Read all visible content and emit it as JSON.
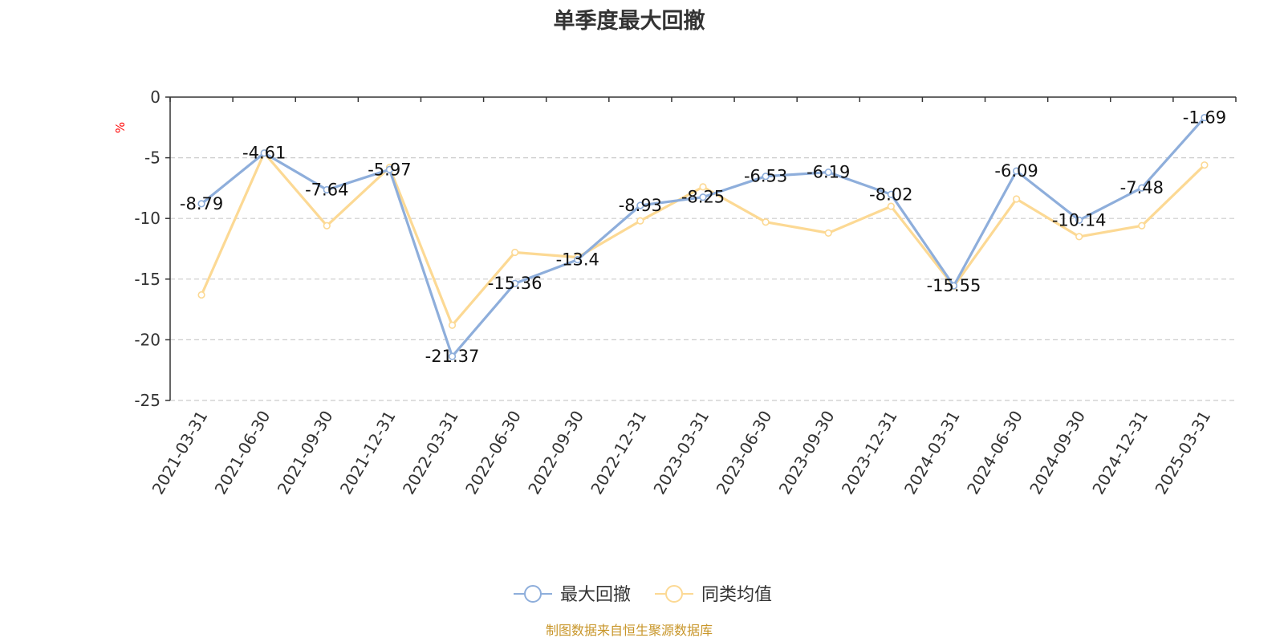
{
  "title": "单季度最大回撤",
  "source": "制图数据来自恒生聚源数据库",
  "chart_data": {
    "type": "line",
    "title": "单季度最大回撤",
    "ylabel": "%",
    "xlabel": "",
    "categories": [
      "2021-03-31",
      "2021-06-30",
      "2021-09-30",
      "2021-12-31",
      "2022-03-31",
      "2022-06-30",
      "2022-09-30",
      "2022-12-31",
      "2023-03-31",
      "2023-06-30",
      "2023-09-30",
      "2023-12-31",
      "2024-03-31",
      "2024-06-30",
      "2024-09-30",
      "2024-12-31",
      "2025-03-31"
    ],
    "ylim": [
      -25,
      0
    ],
    "yticks": [
      0,
      -5,
      -10,
      -15,
      -20,
      -25
    ],
    "grid": true,
    "legend_position": "bottom-center",
    "series": [
      {
        "name": "最大回撤",
        "color": "#8eaedb",
        "show_labels": true,
        "values": [
          -8.79,
          -4.61,
          -7.64,
          -5.97,
          -21.37,
          -15.36,
          -13.4,
          -8.93,
          -8.25,
          -6.53,
          -6.19,
          -8.02,
          -15.55,
          -6.09,
          -10.14,
          -7.48,
          -1.69
        ]
      },
      {
        "name": "同类均值",
        "color": "#fcd994",
        "show_labels": false,
        "values": [
          -16.3,
          -4.6,
          -10.6,
          -5.8,
          -18.8,
          -12.8,
          -13.2,
          -10.2,
          -7.4,
          -10.3,
          -11.2,
          -9.0,
          -15.6,
          -8.4,
          -11.5,
          -10.6,
          -5.6
        ]
      }
    ]
  }
}
